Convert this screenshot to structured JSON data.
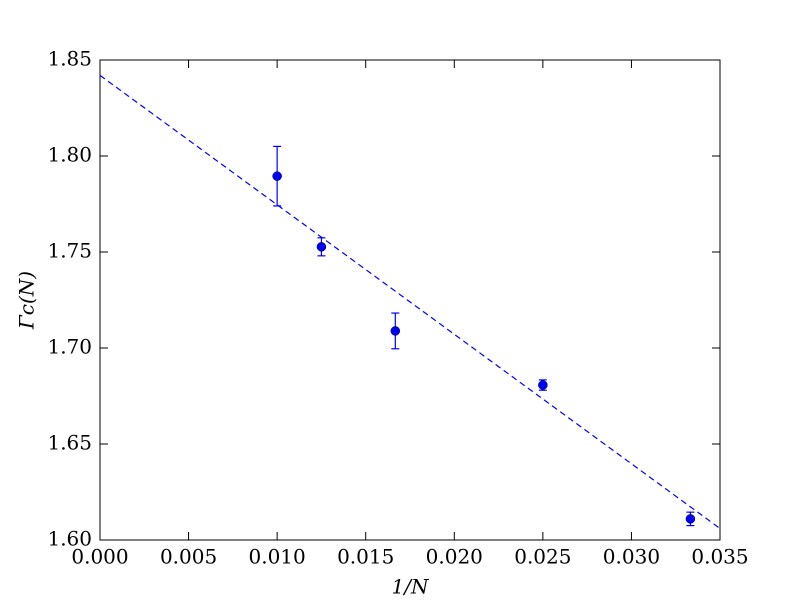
{
  "chart_data": {
    "type": "errorbar",
    "x_label": "1/N",
    "y_label": "Γc(N)",
    "x": [
      0.01,
      0.0125,
      0.01667,
      0.025,
      0.03333
    ],
    "values": [
      1.7895,
      1.7527,
      1.7089,
      1.6807,
      1.611
    ],
    "errors": [
      0.0155,
      0.0047,
      0.0093,
      0.0027,
      0.0035
    ],
    "color": "#0000ff",
    "fit": {
      "x": [
        0,
        0.035
      ],
      "values": [
        1.842,
        1.606
      ]
    },
    "xlim": [
      0,
      0.035
    ],
    "ylim": [
      1.6,
      1.85
    ],
    "xticks": [
      {
        "value": 0,
        "label": "0.000"
      },
      {
        "value": 0.005,
        "label": "0.005"
      },
      {
        "value": 0.01,
        "label": "0.010"
      },
      {
        "value": 0.015,
        "label": "0.015"
      },
      {
        "value": 0.02,
        "label": "0.020"
      },
      {
        "value": 0.025,
        "label": "0.025"
      },
      {
        "value": 0.03,
        "label": "0.030"
      },
      {
        "value": 0.035,
        "label": "0.035"
      }
    ],
    "yticks": [
      {
        "value": 1.6,
        "label": "1.60"
      },
      {
        "value": 1.65,
        "label": "1.65"
      },
      {
        "value": 1.7,
        "label": "1.70"
      },
      {
        "value": 1.75,
        "label": "1.75"
      },
      {
        "value": 1.8,
        "label": "1.80"
      },
      {
        "value": 1.85,
        "label": "1.85"
      }
    ]
  }
}
